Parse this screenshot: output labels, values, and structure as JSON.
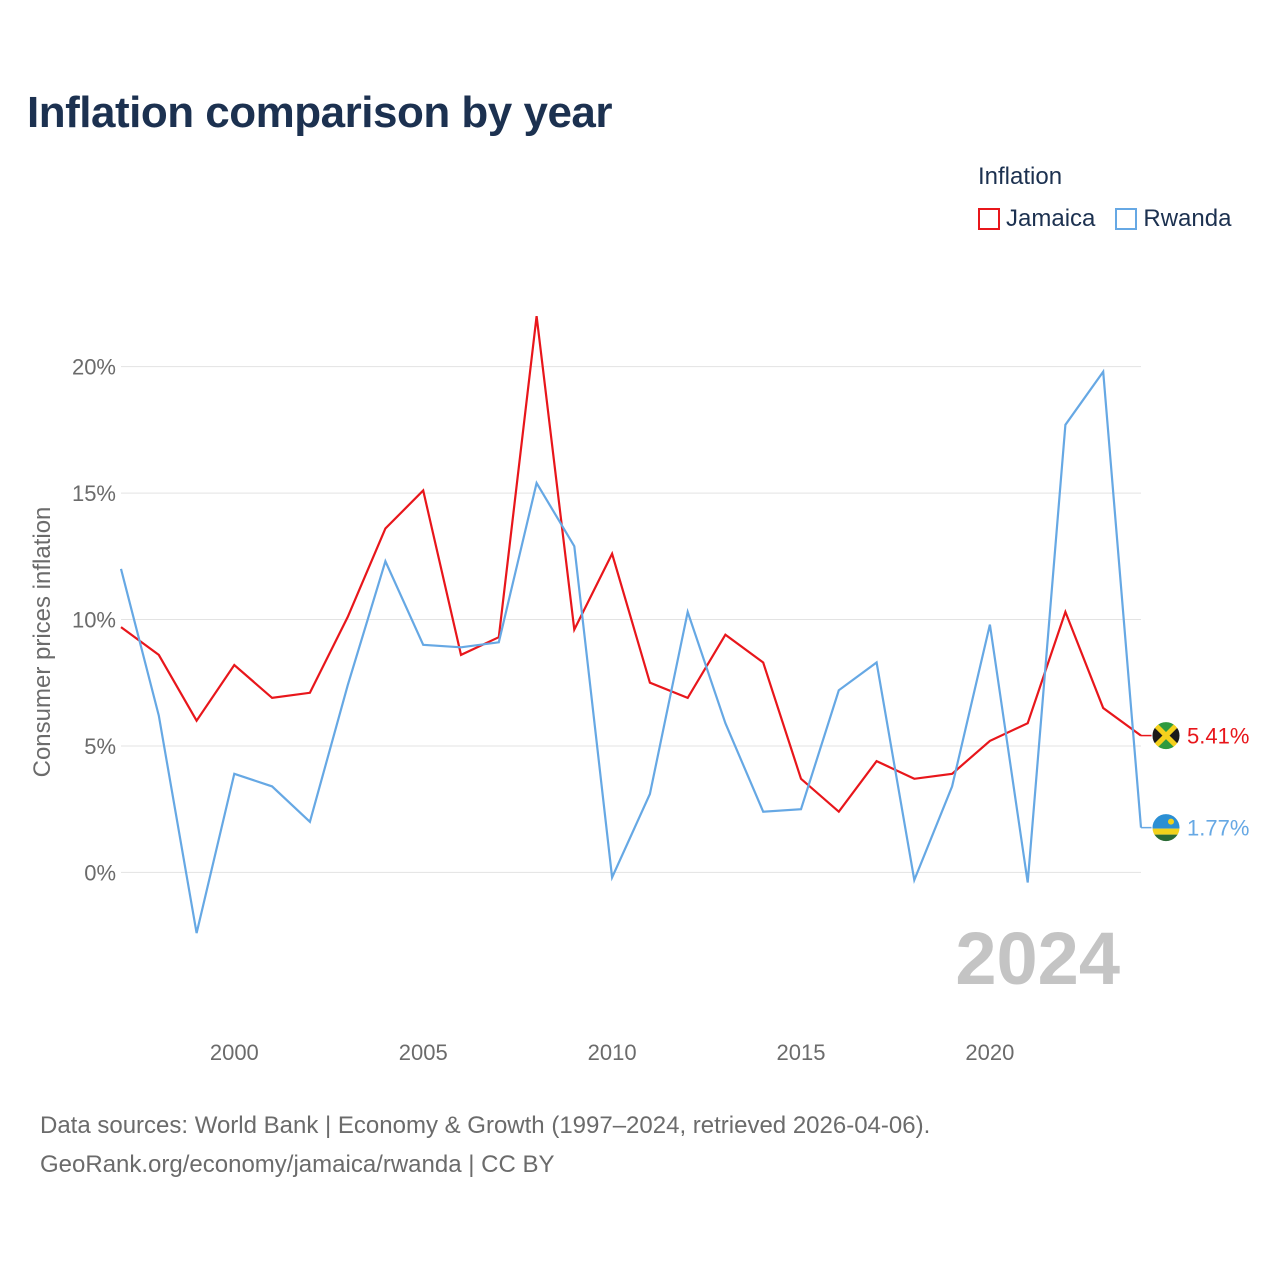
{
  "title": "Inflation comparison by year",
  "legend": {
    "title": "Inflation",
    "items": [
      {
        "label": "Jamaica",
        "color": "#e8161b"
      },
      {
        "label": "Rwanda",
        "color": "#66a8e4"
      }
    ]
  },
  "chart_data": {
    "type": "line",
    "ylabel": "Consumer prices inflation",
    "xlabel": "",
    "x": [
      1997,
      1998,
      1999,
      2000,
      2001,
      2002,
      2003,
      2004,
      2005,
      2006,
      2007,
      2008,
      2009,
      2010,
      2011,
      2012,
      2013,
      2014,
      2015,
      2016,
      2017,
      2018,
      2019,
      2020,
      2021,
      2022,
      2023,
      2024
    ],
    "xlim": [
      1997,
      2024
    ],
    "ylim": [
      -3.9,
      22.2
    ],
    "x_ticks": [
      2000,
      2005,
      2010,
      2015,
      2020
    ],
    "x_tick_labels": [
      "2000",
      "2005",
      "2010",
      "2015",
      "2020"
    ],
    "y_ticks": [
      0,
      5,
      10,
      15,
      20
    ],
    "y_tick_labels": [
      "0%",
      "5%",
      "10%",
      "15%",
      "20%"
    ],
    "grid": true,
    "year_watermark": "2024",
    "series": [
      {
        "name": "Jamaica",
        "color": "#e8161b",
        "end_label": "5.41%",
        "values": [
          9.7,
          8.6,
          6.0,
          8.2,
          6.9,
          7.1,
          10.1,
          13.6,
          15.1,
          8.6,
          9.3,
          22.0,
          9.6,
          12.6,
          7.5,
          6.9,
          9.4,
          8.3,
          3.7,
          2.4,
          4.4,
          3.7,
          3.9,
          5.2,
          5.9,
          10.3,
          6.5,
          5.41
        ]
      },
      {
        "name": "Rwanda",
        "color": "#66a8e4",
        "end_label": "1.77%",
        "values": [
          12.0,
          6.2,
          -2.4,
          3.9,
          3.4,
          2.0,
          7.4,
          12.3,
          9.0,
          8.9,
          9.1,
          15.4,
          12.9,
          -0.2,
          3.1,
          10.3,
          5.9,
          2.4,
          2.5,
          7.2,
          8.3,
          -0.3,
          3.4,
          9.8,
          -0.4,
          17.7,
          19.8,
          1.77
        ]
      }
    ]
  },
  "footer": {
    "line1": "Data sources: World Bank | Economy & Growth (1997–2024, retrieved 2026-04-06).",
    "line2": "GeoRank.org/economy/jamaica/rwanda | CC BY"
  }
}
